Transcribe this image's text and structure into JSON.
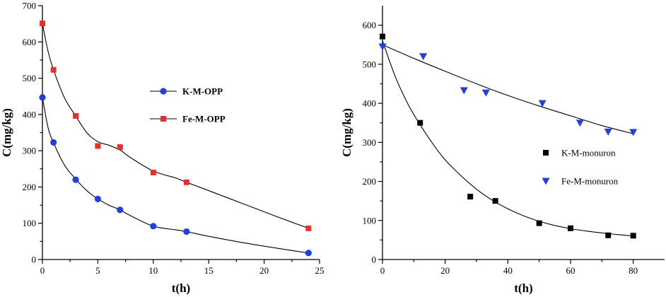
{
  "chart_data": [
    {
      "type": "scatter",
      "xlabel": "t(h)",
      "ylabel": "C(mg/kg)",
      "xlim": [
        0,
        25
      ],
      "ylim": [
        0,
        700
      ],
      "xticks": [
        0,
        5,
        10,
        15,
        20,
        25
      ],
      "yticks": [
        0,
        100,
        200,
        300,
        400,
        500,
        600,
        700
      ],
      "legend_position": "middle-right",
      "series": [
        {
          "name": "K-M-OPP",
          "marker": "circle",
          "color": "#1f3fe0",
          "x": [
            0,
            1,
            3,
            5,
            7,
            10,
            13,
            24
          ],
          "y": [
            447,
            323,
            220,
            167,
            137,
            92,
            77,
            18
          ],
          "fit_x": [
            0,
            0.5,
            1,
            2,
            3,
            4,
            5,
            6,
            7,
            8,
            10,
            12,
            13,
            15,
            18,
            21,
            24
          ],
          "fit_y": [
            447,
            365,
            322,
            260,
            222,
            190,
            167,
            150,
            137,
            120,
            92,
            82,
            77,
            64,
            47,
            32,
            18
          ]
        },
        {
          "name": "Fe-M-OPP",
          "marker": "square",
          "color": "#e8302a",
          "x": [
            0,
            1,
            3,
            5,
            7,
            10,
            13,
            24
          ],
          "y": [
            651,
            523,
            396,
            313,
            310,
            240,
            213,
            86
          ],
          "fit_x": [
            0,
            0.5,
            1,
            2,
            3,
            4,
            5,
            6,
            7,
            8,
            10,
            12,
            13,
            15,
            18,
            21,
            24
          ],
          "fit_y": [
            651,
            575,
            523,
            445,
            396,
            350,
            325,
            315,
            302,
            280,
            244,
            225,
            213,
            190,
            155,
            120,
            86
          ]
        }
      ]
    },
    {
      "type": "scatter",
      "xlabel": "t(h)",
      "ylabel": "C(mg/kg)",
      "xlim": [
        0,
        90
      ],
      "ylim": [
        0,
        650
      ],
      "xticks": [
        0,
        20,
        40,
        60,
        80
      ],
      "yticks": [
        0,
        100,
        200,
        300,
        400,
        500,
        600
      ],
      "legend_position": "middle-right",
      "series": [
        {
          "name": "K-M-monuron",
          "marker": "square",
          "color": "#000000",
          "x": [
            0,
            12,
            28,
            36,
            50,
            60,
            72,
            80
          ],
          "y": [
            571,
            350,
            161,
            150,
            93,
            80,
            62,
            61
          ],
          "fit_x": [
            0,
            4,
            8,
            12,
            16,
            20,
            25,
            30,
            35,
            40,
            45,
            50,
            55,
            60,
            65,
            70,
            75,
            80
          ],
          "fit_y": [
            560,
            470,
            400,
            345,
            297,
            255,
            215,
            180,
            152,
            130,
            112,
            98,
            87,
            79,
            73,
            68,
            64,
            60
          ]
        },
        {
          "name": "Fe-M-monuron",
          "marker": "triangle-down",
          "color": "#1f3fe0",
          "x": [
            0,
            13,
            26,
            33,
            51,
            63,
            72,
            80
          ],
          "y": [
            545,
            520,
            433,
            427,
            400,
            350,
            327,
            326
          ],
          "fit_x": [
            0,
            10,
            20,
            30,
            40,
            50,
            60,
            70,
            80
          ],
          "fit_y": [
            550,
            515,
            482,
            450,
            420,
            393,
            368,
            343,
            322
          ]
        }
      ]
    }
  ]
}
